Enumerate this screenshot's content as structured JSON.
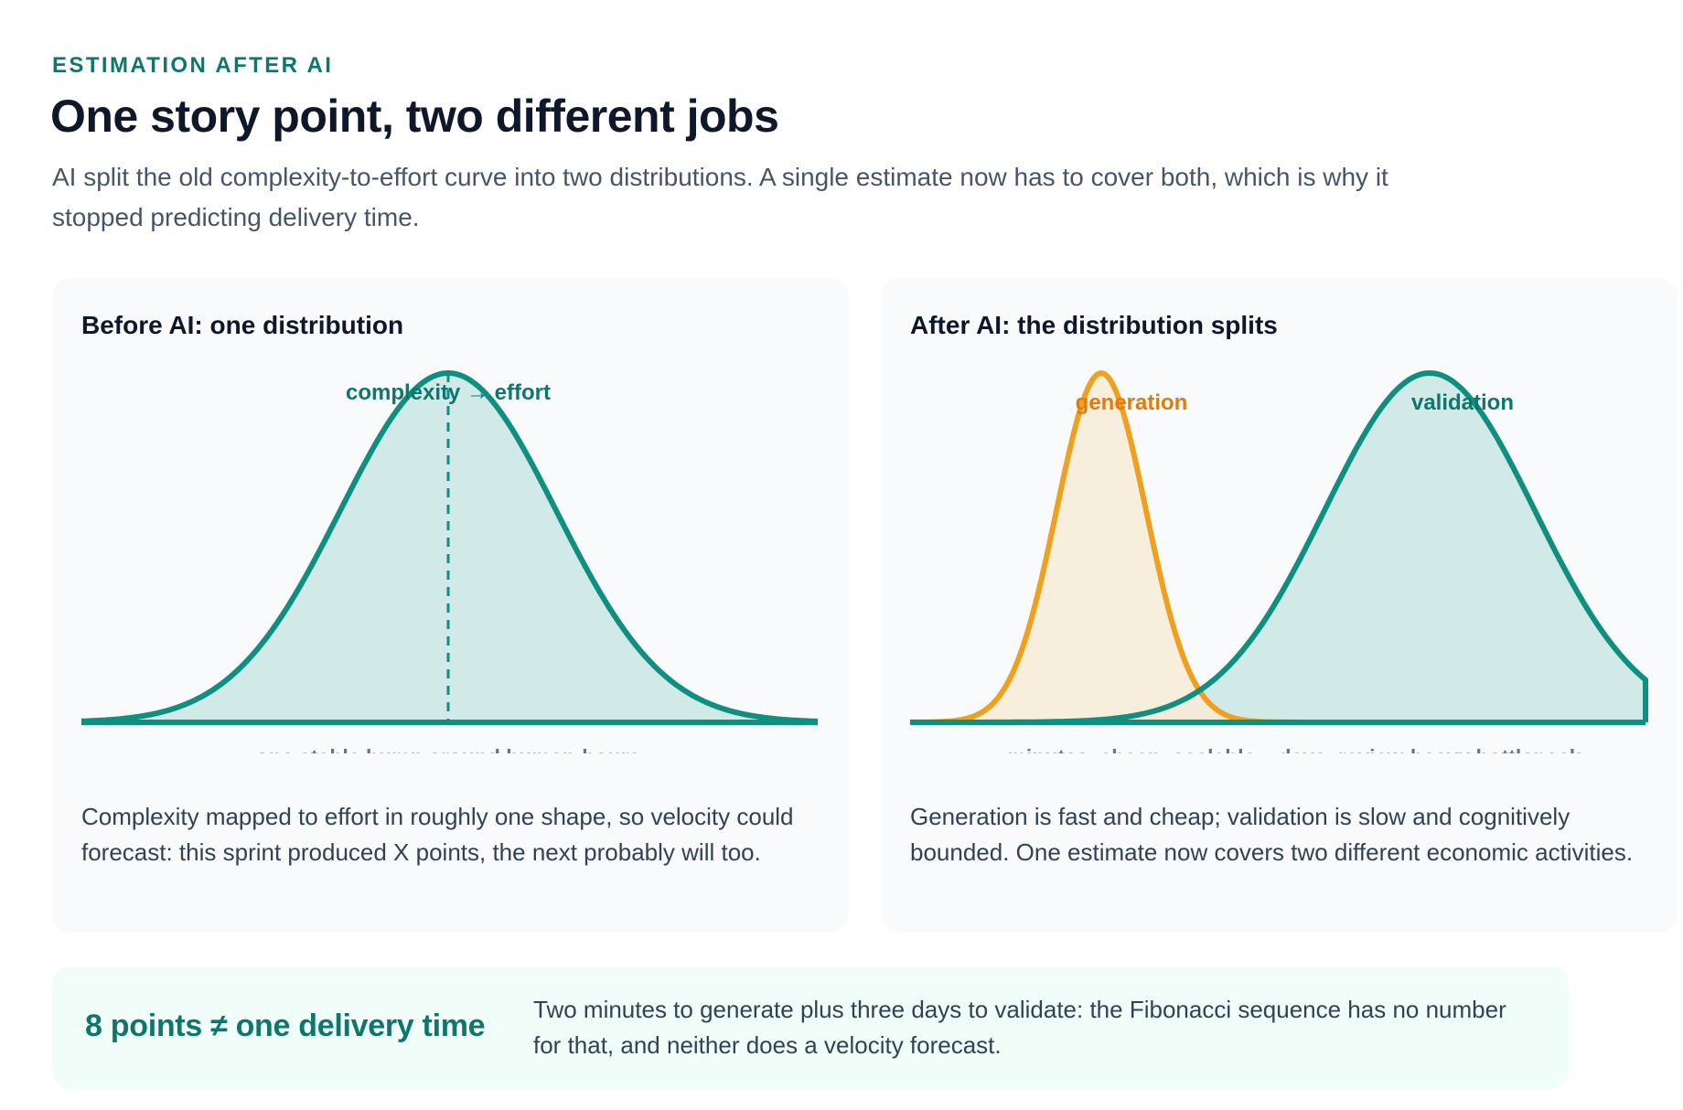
{
  "header": {
    "eyebrow": "ESTIMATION AFTER AI",
    "title": "One story point, two different jobs",
    "subtitle": "AI split the old complexity-to-effort curve into two distributions. A single estimate now has to cover both, which is why it stopped predicting delivery time."
  },
  "before": {
    "title": "Before AI: one distribution",
    "peak_label": "complexity → effort",
    "axis_label": "one stable hump around human-hours",
    "description": "Complexity mapped to effort in roughly one shape, so velocity could forecast: this sprint produced X points, the next probably will too."
  },
  "after": {
    "title": "After AI: the distribution splits",
    "generation_label": "generation",
    "validation_label": "validation",
    "generation_axis_label": "minutes, cheap, scalable",
    "validation_axis_label": "days, review-heavy bottleneck",
    "description": "Generation is fast and cheap; validation is slow and cognitively bounded. One estimate now covers two different economic activities."
  },
  "callout": {
    "key": "8 points ≠ one delivery time",
    "text": "Two minutes to generate plus three days to validate: the Fibonacci sequence has no number for that, and neither does a velocity forecast."
  },
  "colors": {
    "teal": "#0f8f80",
    "teal_fill": "#d1e9e7",
    "orange": "#f0a020",
    "orange_fill": "#f8ebd6",
    "orange_text": "#e07b0c"
  }
}
